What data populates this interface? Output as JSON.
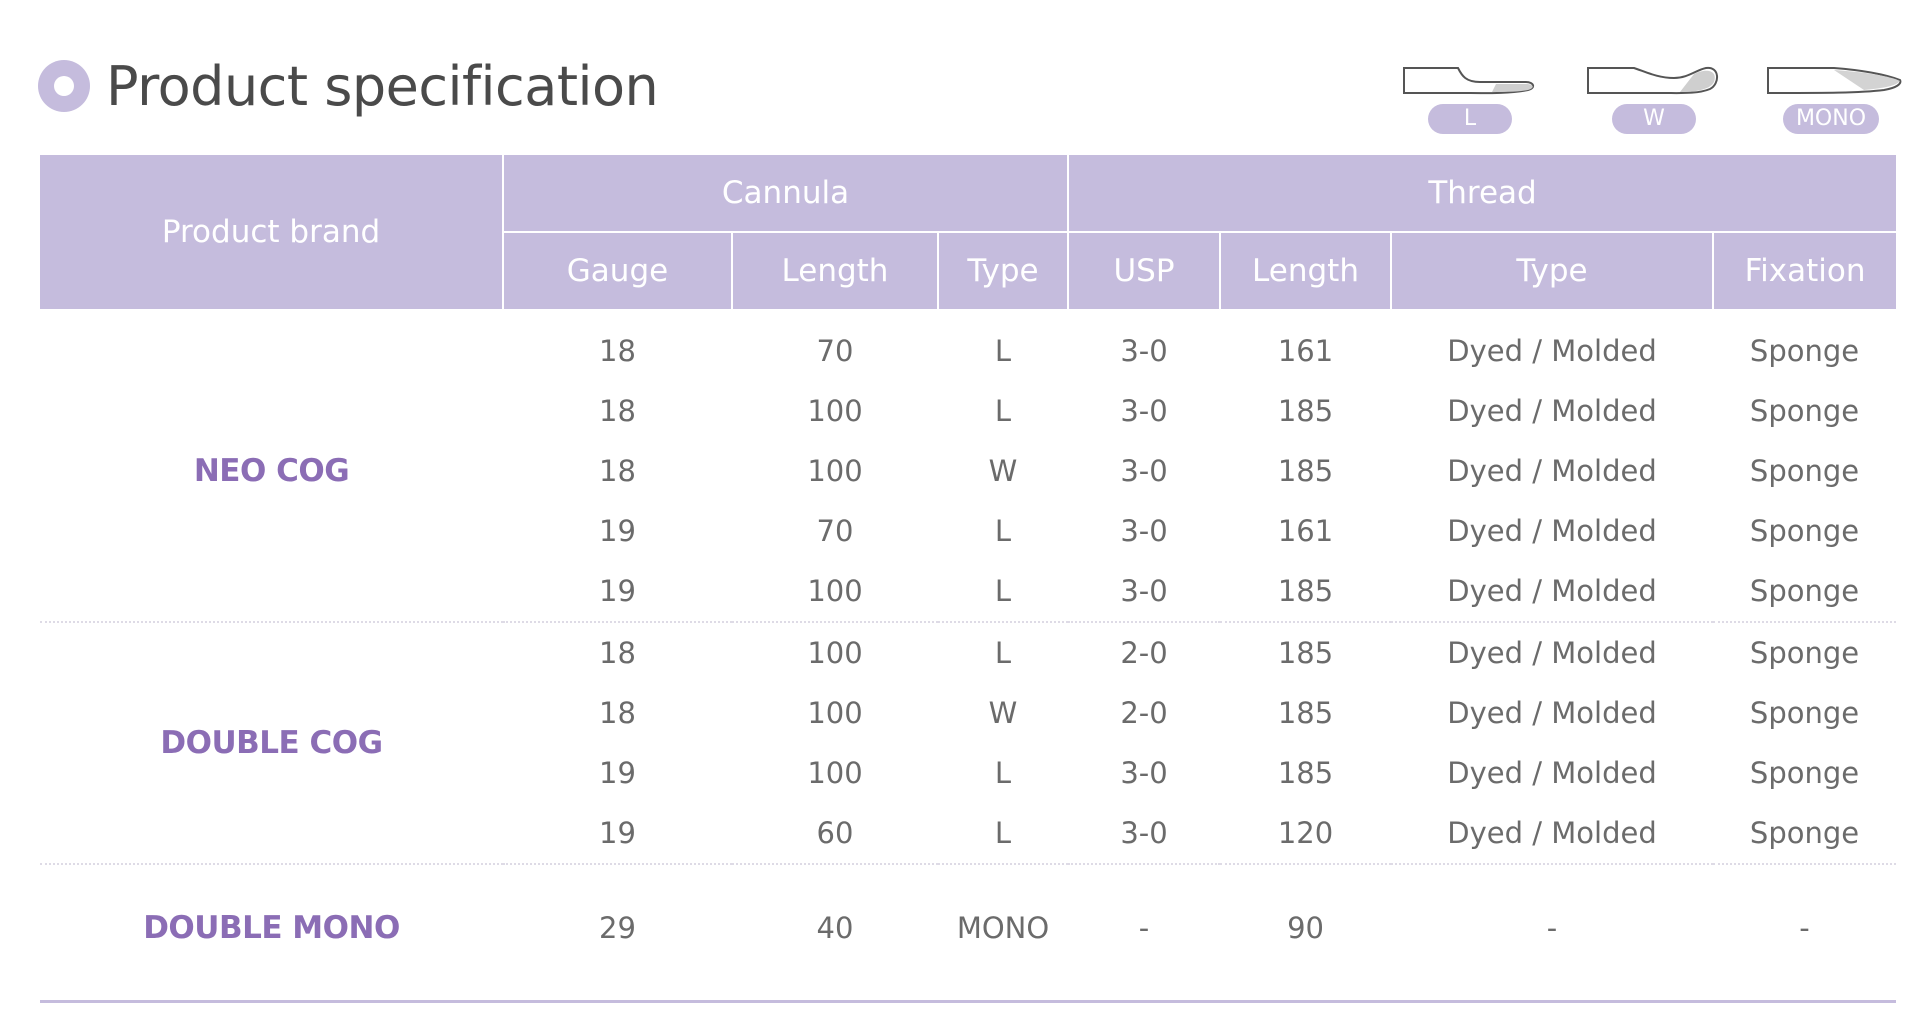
{
  "title": "Product specification",
  "legend": [
    {
      "label": "L",
      "icon": "needle-l-icon"
    },
    {
      "label": "W",
      "icon": "needle-w-icon"
    },
    {
      "label": "MONO",
      "icon": "needle-mono-icon"
    }
  ],
  "header": {
    "product_brand": "Product brand",
    "cannula": "Cannula",
    "thread": "Thread",
    "columns": [
      "Gauge",
      "Length",
      "Type",
      "USP",
      "Length",
      "Type",
      "Fixation"
    ]
  },
  "groups": [
    {
      "brand": "NEO COG",
      "rows": [
        [
          "18",
          "70",
          "L",
          "3-0",
          "161",
          "Dyed / Molded",
          "Sponge"
        ],
        [
          "18",
          "100",
          "L",
          "3-0",
          "185",
          "Dyed / Molded",
          "Sponge"
        ],
        [
          "18",
          "100",
          "W",
          "3-0",
          "185",
          "Dyed / Molded",
          "Sponge"
        ],
        [
          "19",
          "70",
          "L",
          "3-0",
          "161",
          "Dyed / Molded",
          "Sponge"
        ],
        [
          "19",
          "100",
          "L",
          "3-0",
          "185",
          "Dyed / Molded",
          "Sponge"
        ]
      ]
    },
    {
      "brand": "DOUBLE COG",
      "rows": [
        [
          "18",
          "100",
          "L",
          "2-0",
          "185",
          "Dyed / Molded",
          "Sponge"
        ],
        [
          "18",
          "100",
          "W",
          "2-0",
          "185",
          "Dyed / Molded",
          "Sponge"
        ],
        [
          "19",
          "100",
          "L",
          "3-0",
          "185",
          "Dyed / Molded",
          "Sponge"
        ],
        [
          "19",
          "60",
          "L",
          "3-0",
          "120",
          "Dyed / Molded",
          "Sponge"
        ]
      ]
    },
    {
      "brand": "DOUBLE MONO",
      "rows": [
        [
          "29",
          "40",
          "MONO",
          "-",
          "90",
          "-",
          "-"
        ]
      ]
    }
  ],
  "colors": {
    "accent": "#c5bcdd",
    "brand_text": "#8b6db5",
    "body_text": "#6b6b6b"
  }
}
